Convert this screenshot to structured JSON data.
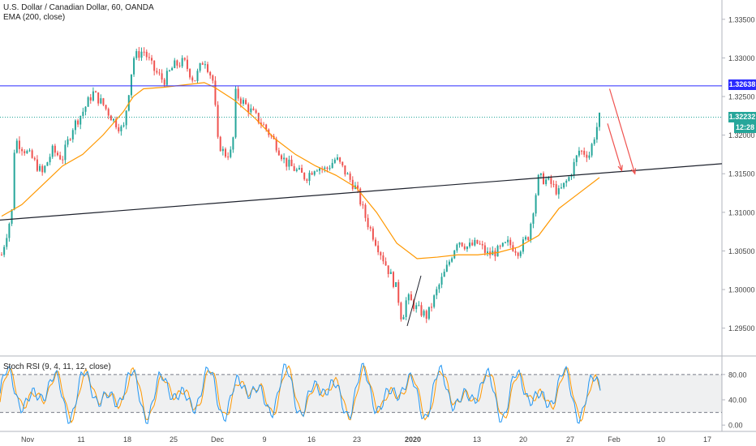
{
  "header": {
    "symbol_line": "U.S. Dollar / Canadian Dollar, 60, OANDA",
    "indicator_line": "EMA (200, close)"
  },
  "rsi_panel": {
    "label": "Stoch RSI (9, 4, 11, 12, close)"
  },
  "price_badges": {
    "resistance": "1.32638",
    "last": "1.32232",
    "countdown": "12:28"
  },
  "chart_data": [
    {
      "type": "line",
      "subtype": "candlestick",
      "title": "U.S. Dollar / Canadian Dollar, 60, OANDA",
      "series": [
        {
          "name": "EMA (200, close)",
          "values": [
            [
              0,
              1.3095
            ],
            [
              2,
              1.311
            ],
            [
              4,
              1.3135
            ],
            [
              6,
              1.316
            ],
            [
              8,
              1.3175
            ],
            [
              10,
              1.32
            ],
            [
              12,
              1.323
            ],
            [
              13,
              1.325
            ],
            [
              14,
              1.326
            ],
            [
              16,
              1.3262
            ],
            [
              18,
              1.3265
            ],
            [
              20,
              1.3268
            ],
            [
              21,
              1.3262
            ],
            [
              23,
              1.3245
            ],
            [
              25,
              1.3222
            ],
            [
              27,
              1.3195
            ],
            [
              29,
              1.3175
            ],
            [
              31,
              1.316
            ],
            [
              33,
              1.3148
            ],
            [
              35,
              1.3132
            ],
            [
              37,
              1.31
            ],
            [
              39,
              1.306
            ],
            [
              41,
              1.304
            ],
            [
              43,
              1.3042
            ],
            [
              45,
              1.3045
            ],
            [
              47,
              1.3045
            ],
            [
              49,
              1.3048
            ],
            [
              51,
              1.3055
            ],
            [
              53,
              1.307
            ],
            [
              55,
              1.3105
            ],
            [
              57,
              1.3125
            ],
            [
              59,
              1.3145
            ]
          ]
        }
      ],
      "price_path": [
        [
          0,
          1.3045
        ],
        [
          1,
          1.31
        ],
        [
          1.3,
          1.3195
        ],
        [
          3,
          1.317
        ],
        [
          4,
          1.315
        ],
        [
          5,
          1.318
        ],
        [
          6,
          1.317
        ],
        [
          7,
          1.321
        ],
        [
          8,
          1.323
        ],
        [
          9,
          1.3255
        ],
        [
          10,
          1.324
        ],
        [
          11,
          1.322
        ],
        [
          12,
          1.3205
        ],
        [
          13,
          1.33
        ],
        [
          14,
          1.331
        ],
        [
          15,
          1.3285
        ],
        [
          16,
          1.327
        ],
        [
          17,
          1.329
        ],
        [
          18,
          1.3295
        ],
        [
          19,
          1.327
        ],
        [
          20,
          1.33
        ],
        [
          21,
          1.3265
        ],
        [
          21.2,
          1.3195
        ],
        [
          22,
          1.3175
        ],
        [
          22.8,
          1.3178
        ],
        [
          23,
          1.3255
        ],
        [
          24,
          1.324
        ],
        [
          25,
          1.3225
        ],
        [
          26,
          1.321
        ],
        [
          27,
          1.319
        ],
        [
          28,
          1.3165
        ],
        [
          29,
          1.3155
        ],
        [
          30,
          1.3145
        ],
        [
          31,
          1.316
        ],
        [
          32,
          1.3155
        ],
        [
          33,
          1.317
        ],
        [
          34,
          1.315
        ],
        [
          35,
          1.313
        ],
        [
          36,
          1.309
        ],
        [
          37,
          1.306
        ],
        [
          38,
          1.303
        ],
        [
          39,
          1.3
        ],
        [
          39.5,
          1.296
        ],
        [
          40,
          1.299
        ],
        [
          41,
          1.2975
        ],
        [
          42,
          1.2965
        ],
        [
          43,
          1.3
        ],
        [
          44,
          1.303
        ],
        [
          45,
          1.3065
        ],
        [
          46,
          1.3055
        ],
        [
          47,
          1.306
        ],
        [
          48,
          1.3045
        ],
        [
          49,
          1.305
        ],
        [
          50,
          1.306
        ],
        [
          51,
          1.305
        ],
        [
          52,
          1.307
        ],
        [
          53,
          1.3145
        ],
        [
          54,
          1.314
        ],
        [
          55,
          1.3125
        ],
        [
          56,
          1.3145
        ],
        [
          57,
          1.318
        ],
        [
          58,
          1.3175
        ],
        [
          59,
          1.3223
        ]
      ],
      "lines": [
        {
          "role": "trendline",
          "from": [
            0,
            1.309
          ],
          "to": [
            66,
            1.3163
          ]
        },
        {
          "role": "resistance",
          "value": 1.32638,
          "label": "1.32638"
        },
        {
          "role": "last-price",
          "value": 1.32232,
          "label": "1.32232"
        }
      ],
      "arrows": [
        {
          "from": [
            60,
            1.326
          ],
          "to": [
            62.5,
            1.315
          ]
        },
        {
          "from": [
            59.8,
            1.3215
          ],
          "to": [
            61.2,
            1.3154
          ]
        }
      ],
      "y_ticks": [
        "1.29500",
        "1.30000",
        "1.30500",
        "1.31000",
        "1.31500",
        "1.32000",
        "1.32500",
        "1.33000",
        "1.33500"
      ],
      "ylim": [
        1.2915,
        1.3375
      ],
      "grid": false
    },
    {
      "type": "line",
      "title": "Stoch RSI (9, 4, 11, 12, close)",
      "y_ticks": [
        "0.00",
        "40.00",
        "80.00"
      ],
      "ylim": [
        -10,
        108
      ],
      "band": [
        20,
        80
      ]
    }
  ],
  "x_axis": {
    "ticks": [
      {
        "label": "Nov",
        "day": 0
      },
      {
        "label": "11",
        "day": 10
      },
      {
        "label": "18",
        "day": 17
      },
      {
        "label": "25",
        "day": 24
      },
      {
        "label": "Dec",
        "day": 30
      },
      {
        "label": "9",
        "day": 38
      },
      {
        "label": "16",
        "day": 45
      },
      {
        "label": "23",
        "day": 52
      },
      {
        "label": "2020",
        "day": 61
      },
      {
        "label": "13",
        "day": 72
      },
      {
        "label": "20",
        "day": 79
      },
      {
        "label": "27",
        "day": 86
      },
      {
        "label": "Feb",
        "day": 91
      },
      {
        "label": "10",
        "day": 99
      },
      {
        "label": "17",
        "day": 106
      }
    ]
  },
  "colors": {
    "up": "#26a69a",
    "down": "#ef5350",
    "ema": "#ff9800",
    "trendline": "#1e222d",
    "resistance": "#2a2aff",
    "last_price": "#26a69a",
    "arrow": "#ef5350",
    "rsi_k": "#2196f3",
    "rsi_d": "#ff9800"
  }
}
